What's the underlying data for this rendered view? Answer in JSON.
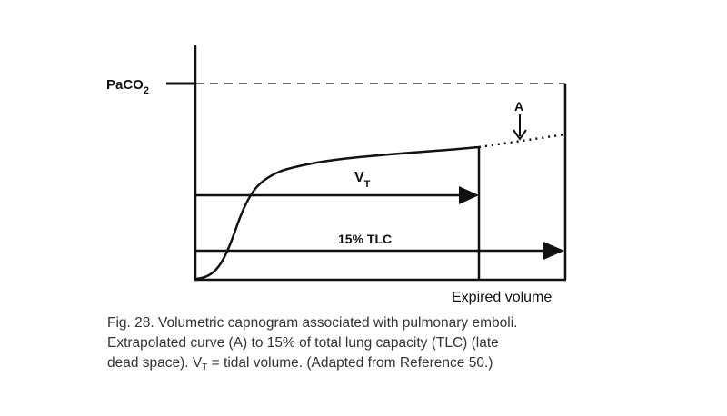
{
  "figure": {
    "labels": {
      "paco2": {
        "text": "PaCO",
        "sub": "2"
      },
      "a": "A",
      "vt": {
        "text": "V",
        "sub": "T"
      },
      "tlc": "15% TLC",
      "x_axis": "Expired volume"
    },
    "caption": {
      "line1": "Fig. 28. Volumetric capnogram associated with pulmonary emboli.",
      "line2": "Extrapolated curve (A) to 15% of total lung capacity (TLC) (late",
      "line3": {
        "before": "dead space). V",
        "sub": "T",
        "after": " = tidal volume. (Adapted from Reference 50.)"
      }
    }
  }
}
